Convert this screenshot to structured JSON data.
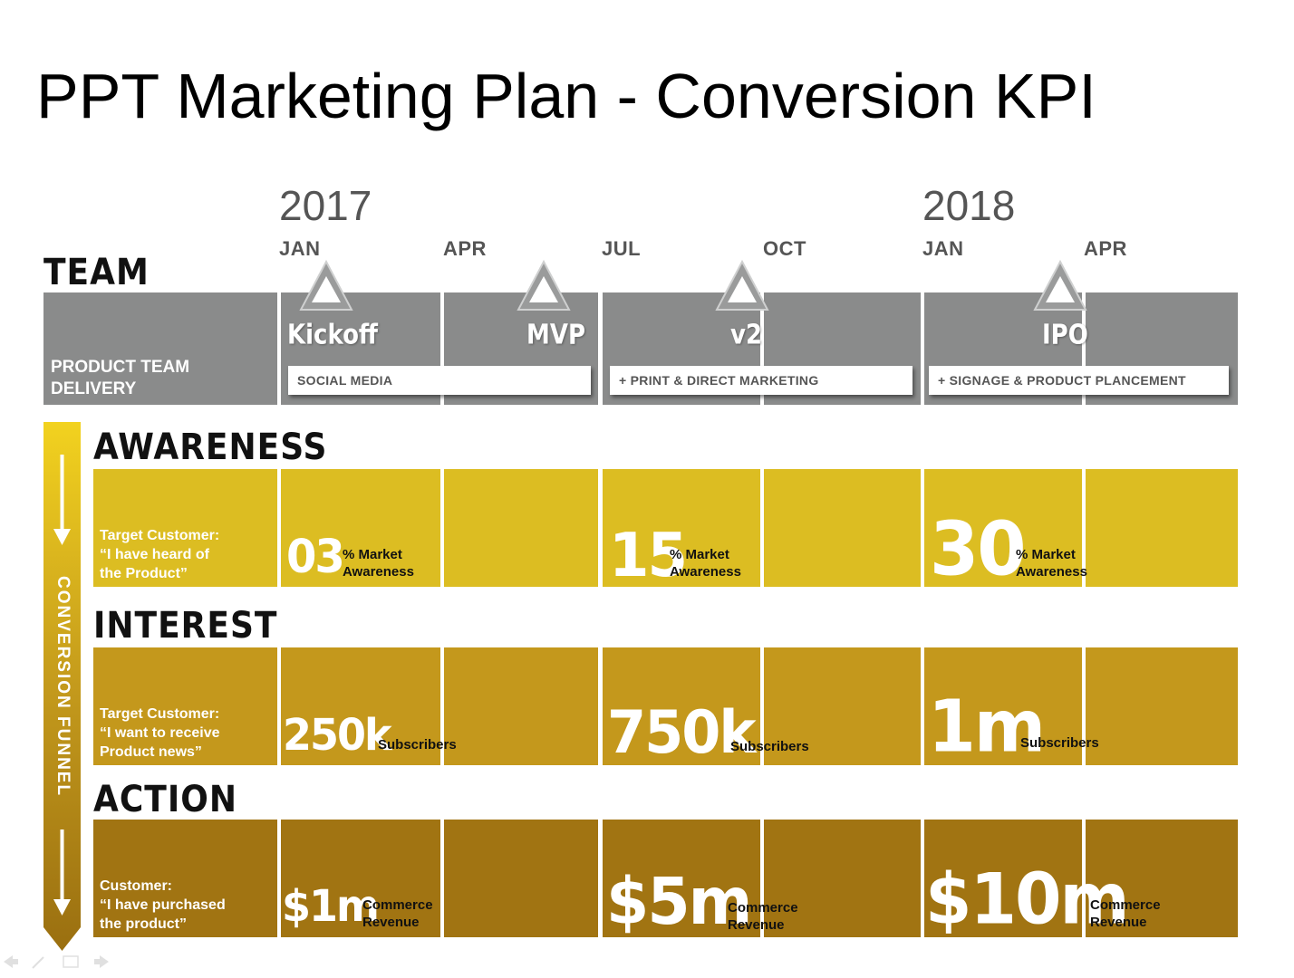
{
  "title": "PPT Marketing Plan - Conversion KPI",
  "timeline": {
    "years": [
      "2017",
      "2018"
    ],
    "months": [
      "JAN",
      "APR",
      "JUL",
      "OCT",
      "JAN",
      "APR"
    ]
  },
  "team": {
    "heading": "TEAM",
    "row_label": "PRODUCT TEAM DELIVERY",
    "milestones": [
      "Kickoff",
      "MVP",
      "v2",
      "IPO"
    ],
    "bars": [
      "SOCIAL  MEDIA",
      "+ PRINT & DIRECT MARKETING",
      "+ SIGNAGE  & PRODUCT PLANCEMENT"
    ]
  },
  "funnel_label": "CONVERSION FUNNEL",
  "awareness": {
    "heading": "AWARENESS",
    "label": "Target Customer:\n“I have heard of\nthe Product”",
    "kpis": [
      {
        "value": "03",
        "unit": "% Market\nAwareness"
      },
      {
        "value": "15",
        "unit": "% Market\nAwareness"
      },
      {
        "value": "30",
        "unit": "% Market\nAwareness"
      }
    ]
  },
  "interest": {
    "heading": "INTEREST",
    "label": "Target Customer:\n“I want to receive\nProduct news”",
    "kpis": [
      {
        "value": "250k",
        "unit": "Subscribers"
      },
      {
        "value": "750k",
        "unit": "Subscribers"
      },
      {
        "value": "1m",
        "unit": "Subscribers"
      }
    ]
  },
  "action": {
    "heading": "ACTION",
    "label": "Customer:\n“I have purchased\nthe product”",
    "kpis": [
      {
        "value": "$1m",
        "unit": "Commerce\nRevenue"
      },
      {
        "value": "$5m",
        "unit": "Commerce\nRevenue"
      },
      {
        "value": "$10m",
        "unit": "Commerce\nRevenue"
      }
    ]
  },
  "colors": {
    "team_gray": "#8a8b8b",
    "awareness": "#dcbd22",
    "interest": "#c4981c",
    "action": "#a17412"
  }
}
